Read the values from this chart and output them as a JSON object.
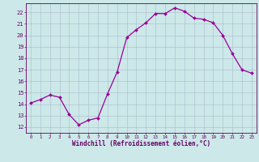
{
  "x": [
    0,
    1,
    2,
    3,
    4,
    5,
    6,
    7,
    8,
    9,
    10,
    11,
    12,
    13,
    14,
    15,
    16,
    17,
    18,
    19,
    20,
    21,
    22,
    23
  ],
  "y": [
    14.1,
    14.4,
    14.8,
    14.6,
    13.1,
    12.2,
    12.6,
    12.8,
    14.9,
    16.8,
    19.8,
    20.5,
    21.1,
    21.9,
    21.9,
    22.4,
    22.1,
    21.5,
    21.4,
    21.1,
    20.0,
    18.4,
    17.0,
    16.7
  ],
  "line_color": "#990099",
  "marker": "D",
  "marker_size": 2,
  "bg_color": "#cce8e8",
  "grid_color": "#aabbcc",
  "xlabel": "Windchill (Refroidissement éolien,°C)",
  "xlim": [
    -0.5,
    23.5
  ],
  "ylim": [
    11.5,
    22.8
  ],
  "yticks": [
    12,
    13,
    14,
    15,
    16,
    17,
    18,
    19,
    20,
    21,
    22
  ],
  "xticks": [
    0,
    1,
    2,
    3,
    4,
    5,
    6,
    7,
    8,
    9,
    10,
    11,
    12,
    13,
    14,
    15,
    16,
    17,
    18,
    19,
    20,
    21,
    22,
    23
  ],
  "tick_color": "#660066",
  "label_color": "#660066",
  "spine_color": "#660066",
  "xlabel_fontsize": 5.5,
  "xtick_fontsize": 4.2,
  "ytick_fontsize": 5.0
}
